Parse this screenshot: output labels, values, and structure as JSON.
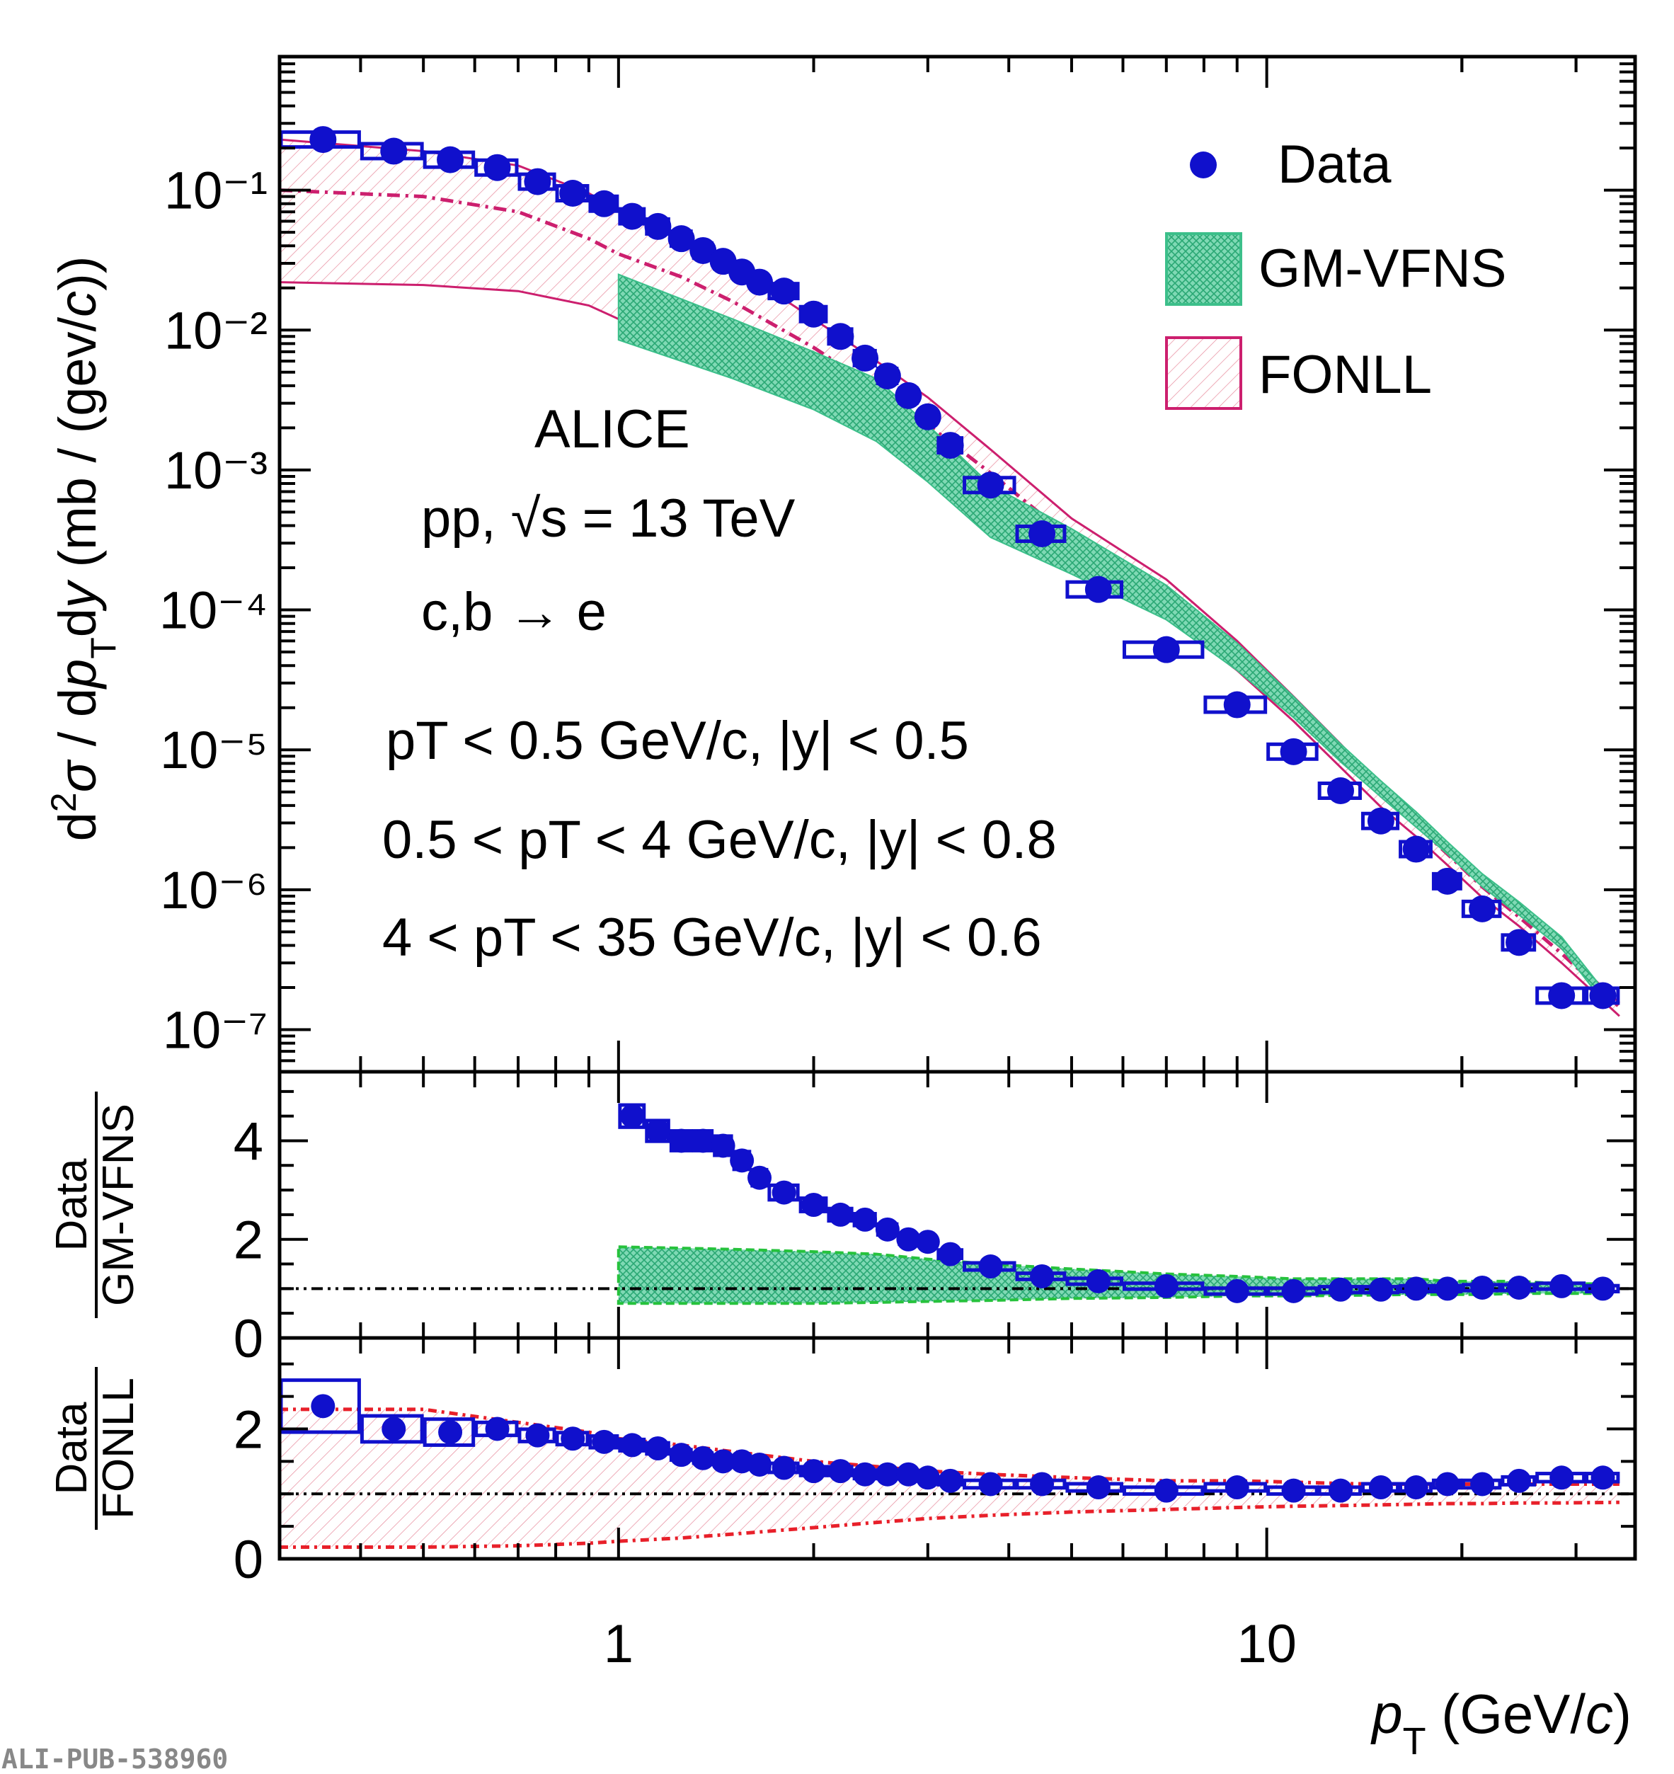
{
  "chart_data": {
    "type": "scatter",
    "x": [
      0.35,
      0.45,
      0.55,
      0.65,
      0.75,
      0.85,
      0.95,
      1.05,
      1.15,
      1.25,
      1.35,
      1.45,
      1.55,
      1.65,
      1.8,
      2.0,
      2.2,
      2.4,
      2.6,
      2.8,
      3.0,
      3.25,
      3.75,
      4.5,
      5.5,
      7.0,
      9.0,
      11.0,
      13.0,
      15.0,
      17.0,
      19.0,
      21.5,
      24.5,
      28.5,
      33.0
    ],
    "x_edges": [
      0.3,
      0.4,
      0.5,
      0.6,
      0.7,
      0.8,
      0.9,
      1.0,
      1.1,
      1.2,
      1.3,
      1.4,
      1.5,
      1.6,
      1.7,
      1.9,
      2.1,
      2.3,
      2.5,
      2.7,
      2.9,
      3.1,
      3.4,
      4.1,
      4.9,
      6.0,
      8.0,
      10.0,
      12.0,
      14.0,
      16.0,
      18.0,
      20.0,
      23.0,
      26.0,
      31.0,
      35.0
    ],
    "series": [
      {
        "name": "Data",
        "color": "#1010cc",
        "cross_section": [
          0.23,
          0.19,
          0.165,
          0.145,
          0.115,
          0.095,
          0.08,
          0.065,
          0.055,
          0.045,
          0.037,
          0.031,
          0.026,
          0.022,
          0.019,
          0.013,
          0.009,
          0.0063,
          0.0047,
          0.0034,
          0.0024,
          0.0015,
          0.00078,
          0.00035,
          0.00014,
          5.2e-05,
          2.1e-05,
          9.7e-06,
          5.1e-06,
          3.1e-06,
          1.95e-06,
          1.15e-06,
          7.3e-07,
          4.2e-07,
          1.75e-07,
          1.75e-07
        ],
        "ratio_to_gmvfns": [
          null,
          null,
          null,
          null,
          null,
          null,
          null,
          4.5,
          4.2,
          4.0,
          4.0,
          3.9,
          3.6,
          3.25,
          2.95,
          2.7,
          2.5,
          2.4,
          2.2,
          2.0,
          1.95,
          1.7,
          1.45,
          1.25,
          1.15,
          1.05,
          0.95,
          0.95,
          0.98,
          0.98,
          1.0,
          1.0,
          1.02,
          1.02,
          1.05,
          1.0
        ],
        "ratio_to_fonll": [
          2.35,
          2.0,
          1.95,
          2.0,
          1.9,
          1.85,
          1.8,
          1.75,
          1.7,
          1.6,
          1.55,
          1.5,
          1.5,
          1.45,
          1.4,
          1.35,
          1.35,
          1.3,
          1.3,
          1.3,
          1.25,
          1.2,
          1.15,
          1.15,
          1.1,
          1.05,
          1.1,
          1.05,
          1.05,
          1.1,
          1.1,
          1.15,
          1.15,
          1.2,
          1.25,
          1.25
        ]
      },
      {
        "name": "GM-VFNS",
        "color": "#3cbf8a",
        "x_range": [
          1.0,
          35.0
        ],
        "cross_section_upper": [
          0.025,
          0.012,
          0.007,
          0.0045,
          0.0021,
          0.00078,
          0.00038,
          0.00015,
          5.8e-05,
          2.4e-05,
          1.1e-05,
          6e-06,
          3.6e-06,
          2.2e-06,
          1.3e-06,
          8.2e-07,
          4.6e-07,
          1.95e-07
        ],
        "cross_section_lower": [
          0.0085,
          0.0045,
          0.0027,
          0.0016,
          0.00082,
          0.00033,
          0.00018,
          8.5e-05,
          3.7e-05,
          1.7e-05,
          8.2e-06,
          4.6e-06,
          2.8e-06,
          1.8e-06,
          1.05e-06,
          6.6e-07,
          3.8e-07,
          1.6e-07
        ],
        "band_x": [
          1.0,
          1.5,
          2.0,
          2.5,
          3.0,
          3.75,
          5.0,
          7.0,
          9.0,
          11.0,
          13.0,
          15.0,
          17.0,
          19.0,
          21.5,
          24.5,
          28.5,
          33.0
        ],
        "ratio_band_upper": [
          1.85,
          1.8,
          1.75,
          1.7,
          1.6,
          1.5,
          1.4,
          1.3,
          1.25,
          1.2,
          1.2,
          1.2,
          1.2,
          1.15,
          1.15,
          1.15,
          1.1,
          1.1
        ],
        "ratio_band_lower": [
          0.7,
          0.7,
          0.7,
          0.72,
          0.74,
          0.76,
          0.8,
          0.82,
          0.85,
          0.85,
          0.86,
          0.87,
          0.88,
          0.88,
          0.88,
          0.9,
          0.9,
          0.9
        ]
      },
      {
        "name": "FONLL",
        "color": "#cc1f6e",
        "central_x": [
          0.3,
          0.5,
          0.7,
          0.9,
          1.0,
          1.25,
          1.5,
          2.0,
          2.5,
          3.0,
          3.75,
          5.0,
          7.0,
          9.0,
          11.0,
          13.0,
          15.0,
          17.0,
          19.0,
          21.5,
          24.5,
          28.5,
          35.0
        ],
        "cross_section_central": [
          0.1,
          0.09,
          0.07,
          0.045,
          0.035,
          0.024,
          0.016,
          0.0075,
          0.0038,
          0.0021,
          0.00095,
          0.00032,
          0.000125,
          4.7e-05,
          2e-05,
          9.3e-06,
          4.7e-06,
          2.9e-06,
          1.8e-06,
          1.05e-06,
          6.4e-07,
          3.5e-07,
          1.45e-07
        ],
        "cross_section_upper": [
          0.23,
          0.19,
          0.15,
          0.095,
          0.072,
          0.046,
          0.029,
          0.012,
          0.006,
          0.0033,
          0.0014,
          0.00045,
          0.000165,
          6e-05,
          2.4e-05,
          1.1e-05,
          5.5e-06,
          3.3e-06,
          2e-06,
          1.15e-06,
          7e-07,
          3.8e-07,
          1.55e-07
        ],
        "cross_section_lower": [
          0.022,
          0.021,
          0.019,
          0.015,
          0.012,
          0.0095,
          0.0072,
          0.0043,
          0.0025,
          0.0015,
          0.00065,
          0.00023,
          9e-05,
          3.7e-05,
          1.6e-05,
          7.5e-06,
          3.9e-06,
          2.4e-06,
          1.5e-06,
          8.8e-07,
          5.5e-07,
          3e-07,
          1.25e-07
        ],
        "ratio_band_upper": [
          2.3,
          2.3,
          2.1,
          1.95,
          1.85,
          1.75,
          1.65,
          1.5,
          1.42,
          1.35,
          1.3,
          1.25,
          1.2,
          1.2,
          1.18,
          1.16,
          1.15,
          1.15,
          1.15,
          1.15,
          1.15,
          1.15,
          1.15
        ],
        "ratio_band_lower": [
          0.18,
          0.18,
          0.2,
          0.24,
          0.27,
          0.32,
          0.38,
          0.48,
          0.56,
          0.62,
          0.67,
          0.72,
          0.76,
          0.79,
          0.81,
          0.82,
          0.83,
          0.84,
          0.85,
          0.85,
          0.86,
          0.86,
          0.87
        ]
      }
    ],
    "xlabel": "pT (GeV/c)",
    "ylabel": "d²σ / dpTdy (mb / (gev/c))",
    "ratio_panels": [
      {
        "ylabel_num": "Data",
        "ylabel_den": "GM-VFNS",
        "ylim": [
          0,
          5.4
        ],
        "yticks": [
          "0",
          "2",
          "4"
        ]
      },
      {
        "ylabel_num": "Data",
        "ylabel_den": "FONLL",
        "ylim": [
          0,
          3.4
        ],
        "yticks": [
          "0",
          "2"
        ]
      }
    ],
    "xlim": [
      0.3,
      37
    ],
    "ylim": [
      5e-08,
      0.9
    ],
    "xscale": "log",
    "yscale": "log",
    "xticks": [
      "1",
      "10"
    ],
    "yticks_top": [
      "10⁻¹",
      "10⁻²",
      "10⁻³",
      "10⁻⁴",
      "10⁻⁵",
      "10⁻⁶",
      "10⁻⁷"
    ],
    "legend": [
      "Data",
      "GM-VFNS",
      "FONLL"
    ],
    "legend_position": "top-right",
    "grid": false,
    "annotations": {
      "experiment": "ALICE",
      "system": "pp, √s = 13 TeV",
      "process": "c,b → e",
      "cut1": "pT < 0.5 GeV/c, |y| < 0.5",
      "cut2": "0.5 < pT < 4 GeV/c, |y| < 0.8",
      "cut3": "4 < pT < 35 GeV/c, |y| < 0.6"
    },
    "footer_id": "ALI-PUB-538960"
  }
}
